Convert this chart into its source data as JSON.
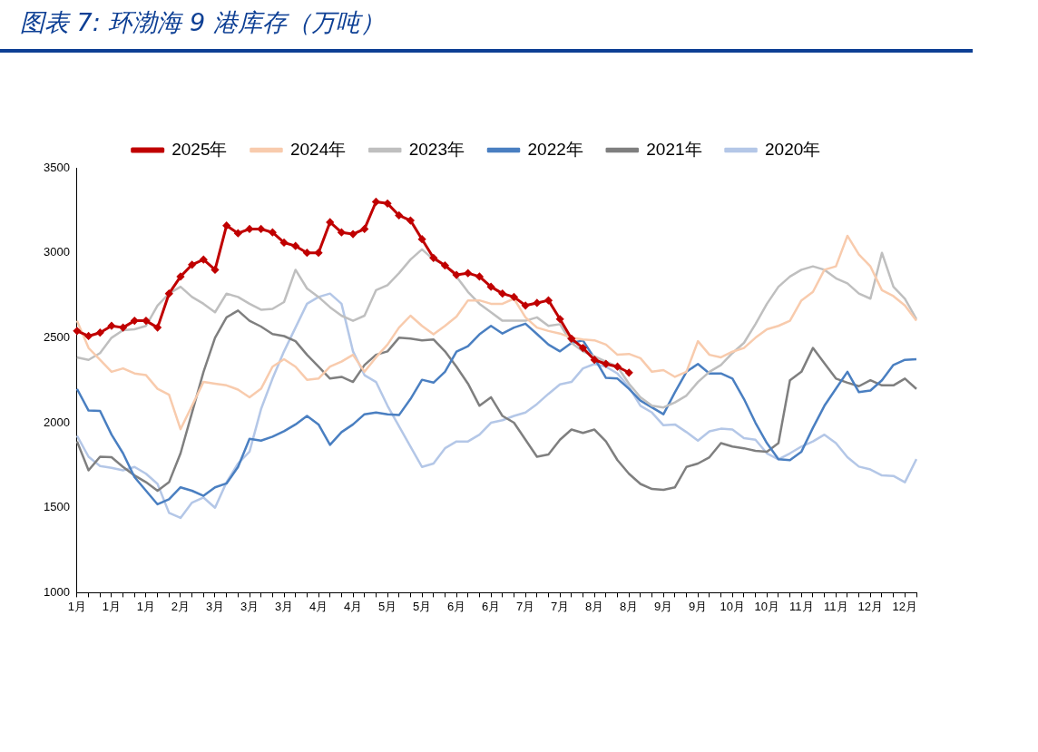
{
  "chart_data": {
    "type": "line",
    "title": "图表 7:  环渤海 9 港库存（万吨）",
    "categories": [
      "1月",
      null,
      null,
      "1月",
      null,
      null,
      "1月",
      null,
      null,
      "2月",
      null,
      null,
      "3月",
      null,
      null,
      "3月",
      null,
      null,
      "3月",
      null,
      null,
      "4月",
      null,
      null,
      "4月",
      null,
      null,
      "5月",
      null,
      null,
      "5月",
      null,
      null,
      "6月",
      null,
      null,
      "6月",
      null,
      null,
      "7月",
      null,
      null,
      "7月",
      null,
      null,
      "8月",
      null,
      null,
      "8月",
      null,
      null,
      "9月",
      null,
      null,
      "9月",
      null,
      null,
      "10月",
      null,
      null,
      "10月",
      null,
      null,
      "11月",
      null,
      null,
      "11月",
      null,
      null,
      "12月",
      null,
      null,
      "12月",
      null
    ],
    "ylim": [
      1000,
      3500
    ],
    "yticks": [
      1000,
      1500,
      2000,
      2500,
      3000,
      3500
    ],
    "grid": false,
    "legend": "top",
    "line_style": "solid",
    "series": [
      {
        "name": "2025年",
        "color": "#c00000",
        "marker": "diamond",
        "values": [
          2540,
          2510,
          2530,
          2570,
          2560,
          2600,
          2600,
          2560,
          2760,
          2860,
          2930,
          2960,
          2900,
          3160,
          3115,
          3140,
          3140,
          3120,
          3060,
          3040,
          3000,
          3000,
          3180,
          3120,
          3110,
          3140,
          3300,
          3290,
          3220,
          3190,
          3080,
          2970,
          2925,
          2870,
          2880,
          2860,
          2800,
          2760,
          2740,
          2690,
          2705,
          2720,
          2610,
          2495,
          2440,
          2370,
          2346,
          2330,
          2295,
          null,
          null,
          null,
          null,
          null,
          null,
          null,
          null,
          null,
          null,
          null,
          null,
          null,
          null,
          null,
          null,
          null,
          null,
          null,
          null,
          null,
          null,
          null,
          null,
          null
        ]
      },
      {
        "name": "2024年",
        "color": "#f8cbad",
        "marker": "none",
        "values": [
          2600,
          2440,
          2370,
          2300,
          2320,
          2290,
          2280,
          2200,
          2165,
          1962,
          2100,
          2240,
          2230,
          2220,
          2195,
          2150,
          2200,
          2330,
          2374,
          2330,
          2253,
          2260,
          2330,
          2360,
          2400,
          2300,
          2385,
          2460,
          2560,
          2630,
          2570,
          2520,
          2570,
          2625,
          2720,
          2720,
          2700,
          2700,
          2730,
          2620,
          2560,
          2540,
          2525,
          2500,
          2490,
          2485,
          2460,
          2400,
          2405,
          2380,
          2300,
          2310,
          2270,
          2300,
          2480,
          2400,
          2385,
          2418,
          2440,
          2500,
          2550,
          2570,
          2600,
          2720,
          2770,
          2900,
          2920,
          3100,
          2990,
          2920,
          2780,
          2745,
          2690,
          2600
        ]
      },
      {
        "name": "2023年",
        "color": "#bfbfbf",
        "marker": "none",
        "values": [
          2385,
          2370,
          2410,
          2500,
          2545,
          2550,
          2570,
          2690,
          2760,
          2800,
          2740,
          2700,
          2650,
          2760,
          2740,
          2700,
          2665,
          2670,
          2710,
          2900,
          2790,
          2740,
          2680,
          2630,
          2600,
          2630,
          2780,
          2810,
          2880,
          2960,
          3020,
          2960,
          2930,
          2860,
          2770,
          2700,
          2650,
          2600,
          2600,
          2600,
          2620,
          2570,
          2580,
          2470,
          2420,
          2390,
          2360,
          2330,
          2230,
          2150,
          2100,
          2090,
          2120,
          2160,
          2240,
          2300,
          2340,
          2410,
          2470,
          2580,
          2700,
          2800,
          2860,
          2900,
          2920,
          2900,
          2850,
          2820,
          2760,
          2730,
          3000,
          2800,
          2730,
          2610
        ]
      },
      {
        "name": "2022年",
        "color": "#4a7fc1",
        "marker": "none",
        "values": [
          2199,
          2072,
          2070,
          1930,
          1820,
          1680,
          1600,
          1520,
          1550,
          1620,
          1600,
          1570,
          1620,
          1643,
          1740,
          1905,
          1895,
          1918,
          1950,
          1990,
          2040,
          1990,
          1870,
          1945,
          1990,
          2050,
          2060,
          2050,
          2045,
          2140,
          2253,
          2236,
          2300,
          2418,
          2450,
          2520,
          2570,
          2525,
          2560,
          2583,
          2522,
          2460,
          2420,
          2470,
          2484,
          2380,
          2264,
          2260,
          2200,
          2130,
          2090,
          2050,
          2180,
          2300,
          2346,
          2290,
          2290,
          2260,
          2140,
          2000,
          1880,
          1785,
          1780,
          1830,
          1970,
          2100,
          2200,
          2300,
          2180,
          2190,
          2250,
          2340,
          2370,
          2374
        ]
      },
      {
        "name": "2021年",
        "color": "#7f7f7f",
        "marker": "none",
        "values": [
          1890,
          1720,
          1800,
          1797,
          1740,
          1690,
          1650,
          1600,
          1650,
          1820,
          2060,
          2300,
          2500,
          2620,
          2660,
          2600,
          2566,
          2522,
          2510,
          2480,
          2400,
          2330,
          2260,
          2270,
          2240,
          2340,
          2400,
          2420,
          2500,
          2495,
          2485,
          2490,
          2420,
          2330,
          2230,
          2100,
          2150,
          2040,
          2000,
          1900,
          1800,
          1813,
          1900,
          1960,
          1940,
          1960,
          1890,
          1780,
          1700,
          1640,
          1610,
          1605,
          1620,
          1740,
          1760,
          1797,
          1880,
          1860,
          1850,
          1835,
          1830,
          1880,
          2250,
          2300,
          2440,
          2350,
          2260,
          2236,
          2215,
          2250,
          2220,
          2220,
          2260,
          2199
        ]
      },
      {
        "name": "2020年",
        "color": "#b4c7e7",
        "marker": "none",
        "values": [
          1923,
          1800,
          1745,
          1735,
          1720,
          1740,
          1700,
          1640,
          1470,
          1440,
          1530,
          1560,
          1500,
          1650,
          1760,
          1830,
          2080,
          2260,
          2420,
          2560,
          2700,
          2740,
          2760,
          2700,
          2420,
          2280,
          2240,
          2100,
          1980,
          1860,
          1740,
          1760,
          1850,
          1890,
          1890,
          1930,
          2000,
          2015,
          2040,
          2060,
          2110,
          2170,
          2226,
          2240,
          2320,
          2346,
          2330,
          2290,
          2210,
          2100,
          2060,
          1985,
          1990,
          1945,
          1895,
          1950,
          1965,
          1960,
          1910,
          1900,
          1820,
          1785,
          1820,
          1860,
          1890,
          1930,
          1880,
          1797,
          1742,
          1725,
          1690,
          1687,
          1650,
          1786
        ]
      }
    ]
  }
}
